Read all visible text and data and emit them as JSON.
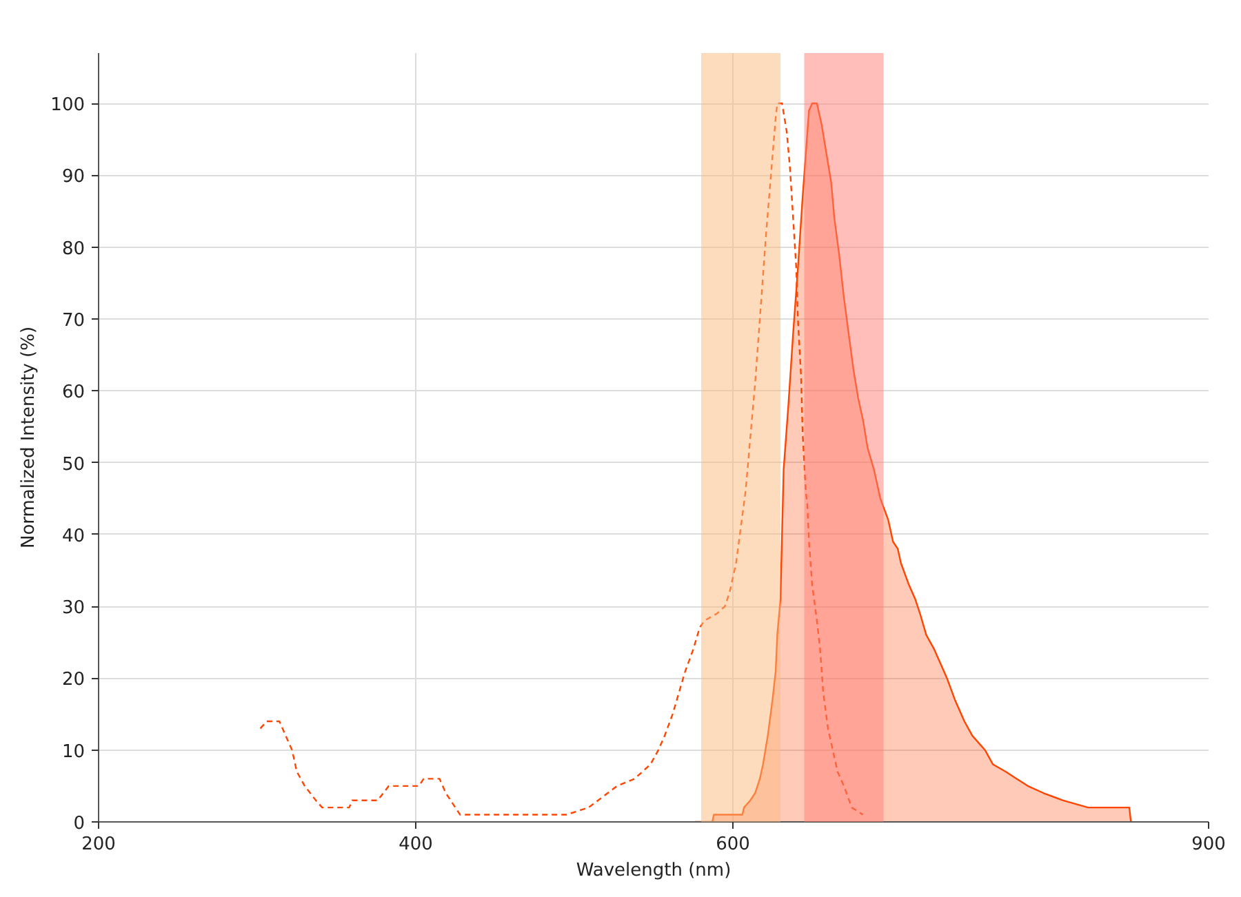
{
  "chart_data": {
    "type": "line",
    "xlabel": "Wavelength (nm)",
    "ylabel": "Normalized Intensity (%)",
    "xlim": [
      200,
      900
    ],
    "xticks": [
      200,
      400,
      600,
      900
    ],
    "ylim": [
      0,
      107
    ],
    "yticks": [
      0,
      10,
      20,
      30,
      40,
      50,
      60,
      70,
      80,
      90,
      100
    ],
    "grid": true,
    "bands": [
      {
        "axis": "x",
        "from": 580,
        "to": 630,
        "color": "#fbb97d"
      },
      {
        "axis": "x",
        "from": 645,
        "to": 695,
        "color": "#ff7d73"
      }
    ],
    "series": [
      {
        "line_style": "dashed",
        "color": "#ff4500",
        "x": [
          302,
          306,
          314,
          318,
          322,
          325,
          330,
          337,
          341,
          358,
          360,
          376,
          383,
          402,
          405,
          415,
          419,
          428,
          495,
          509,
          515,
          521,
          527,
          538,
          548,
          553,
          557,
          562,
          566,
          570,
          575,
          579,
          582,
          590,
          595,
          598,
          602,
          605,
          608,
          614,
          618,
          621,
          624,
          627,
          628,
          631,
          634,
          636,
          638,
          640,
          641,
          643,
          644,
          646,
          647,
          648,
          650,
          653,
          655,
          657,
          660,
          663,
          666,
          670,
          675,
          682
        ],
        "values": [
          13,
          14,
          14,
          12,
          10,
          7,
          5,
          3,
          2,
          2,
          3,
          3,
          5,
          5,
          6,
          6,
          4,
          1,
          1,
          2,
          3,
          4,
          5,
          6,
          8,
          10,
          12,
          15,
          18,
          21,
          24,
          27,
          28,
          29,
          30,
          32,
          36,
          41,
          46,
          61,
          73,
          82,
          90,
          98,
          100,
          100,
          96,
          91,
          84,
          77,
          70,
          62,
          54,
          46,
          44,
          39,
          33,
          28,
          24,
          18,
          13,
          10,
          7,
          5,
          2,
          1
        ]
      },
      {
        "type": "area",
        "line_style": "solid",
        "color": "#ff4500",
        "x": [
          576,
          587,
          588,
          606,
          607,
          611,
          614,
          617,
          619,
          622,
          625,
          627,
          628,
          630,
          631,
          632,
          635,
          638,
          641,
          644,
          646,
          648,
          650,
          653,
          656,
          659,
          662,
          664,
          667,
          670,
          673,
          676,
          679,
          682,
          685,
          689,
          693,
          698,
          701,
          704,
          706,
          711,
          715,
          718,
          722,
          727,
          731,
          735,
          740,
          746,
          751,
          759,
          764,
          772,
          779,
          786,
          796,
          808,
          824,
          850,
          851
        ],
        "values": [
          0,
          0,
          1,
          1,
          2,
          3,
          4,
          6,
          8,
          12,
          17,
          21,
          26,
          31,
          40,
          49,
          58,
          68,
          77,
          87,
          93,
          99,
          100,
          100,
          97,
          93,
          89,
          84,
          79,
          73,
          68,
          63,
          59,
          56,
          52,
          49,
          45,
          42,
          39,
          38,
          36,
          33,
          31,
          29,
          26,
          24,
          22,
          20,
          17,
          14,
          12,
          10,
          8,
          7,
          6,
          5,
          4,
          3,
          2,
          2,
          0
        ]
      }
    ]
  }
}
